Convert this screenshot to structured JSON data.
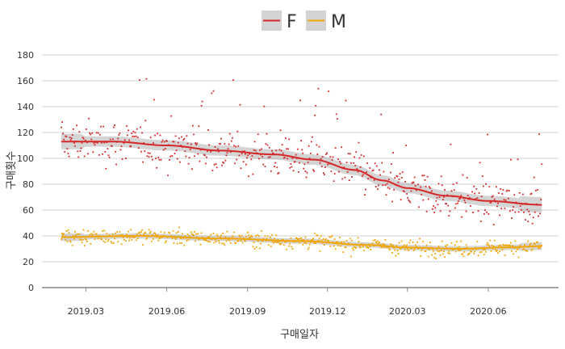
{
  "chart_data": {
    "type": "scatter",
    "xlabel": "구매일자",
    "ylabel": "구매횟수",
    "x_tick_labels": [
      "2019.03",
      "2019.06",
      "2019.09",
      "2019.12",
      "2020.03",
      "2020.06"
    ],
    "y_tick_labels": [
      "0",
      "20",
      "40",
      "60",
      "80",
      "100",
      "120",
      "140",
      "160",
      "180"
    ],
    "ylim": [
      0,
      185
    ],
    "xlim": [
      "2019-01-10",
      "2020-08-20"
    ],
    "x_ticks": [
      "2019-03-01",
      "2019-06-01",
      "2019-09-01",
      "2019-12-01",
      "2020-03-01",
      "2020-06-01"
    ],
    "y_ticks": [
      0,
      20,
      40,
      60,
      80,
      100,
      120,
      140,
      160,
      180
    ],
    "grid": true,
    "legend_position": "top",
    "point_count_per_series": 560,
    "series": [
      {
        "name": "F",
        "color": "#d62728",
        "smooth_trend": [
          {
            "x": "2019-02-01",
            "y": 113
          },
          {
            "x": "2019-04-01",
            "y": 113
          },
          {
            "x": "2019-06-01",
            "y": 110
          },
          {
            "x": "2019-08-01",
            "y": 106
          },
          {
            "x": "2019-10-01",
            "y": 103
          },
          {
            "x": "2019-11-15",
            "y": 99
          },
          {
            "x": "2020-01-01",
            "y": 91
          },
          {
            "x": "2020-02-01",
            "y": 83
          },
          {
            "x": "2020-03-01",
            "y": 77
          },
          {
            "x": "2020-04-15",
            "y": 71
          },
          {
            "x": "2020-06-01",
            "y": 67
          },
          {
            "x": "2020-08-01",
            "y": 64
          }
        ],
        "confidence_band_halfwidth": 4
      },
      {
        "name": "M",
        "color": "#f0a500",
        "smooth_trend": [
          {
            "x": "2019-02-01",
            "y": 39
          },
          {
            "x": "2019-05-01",
            "y": 40
          },
          {
            "x": "2019-08-01",
            "y": 38
          },
          {
            "x": "2019-11-01",
            "y": 36
          },
          {
            "x": "2020-01-15",
            "y": 33
          },
          {
            "x": "2020-03-01",
            "y": 31
          },
          {
            "x": "2020-05-01",
            "y": 30
          },
          {
            "x": "2020-06-15",
            "y": 31
          },
          {
            "x": "2020-08-01",
            "y": 32
          }
        ],
        "confidence_band_halfwidth": 2
      }
    ]
  }
}
